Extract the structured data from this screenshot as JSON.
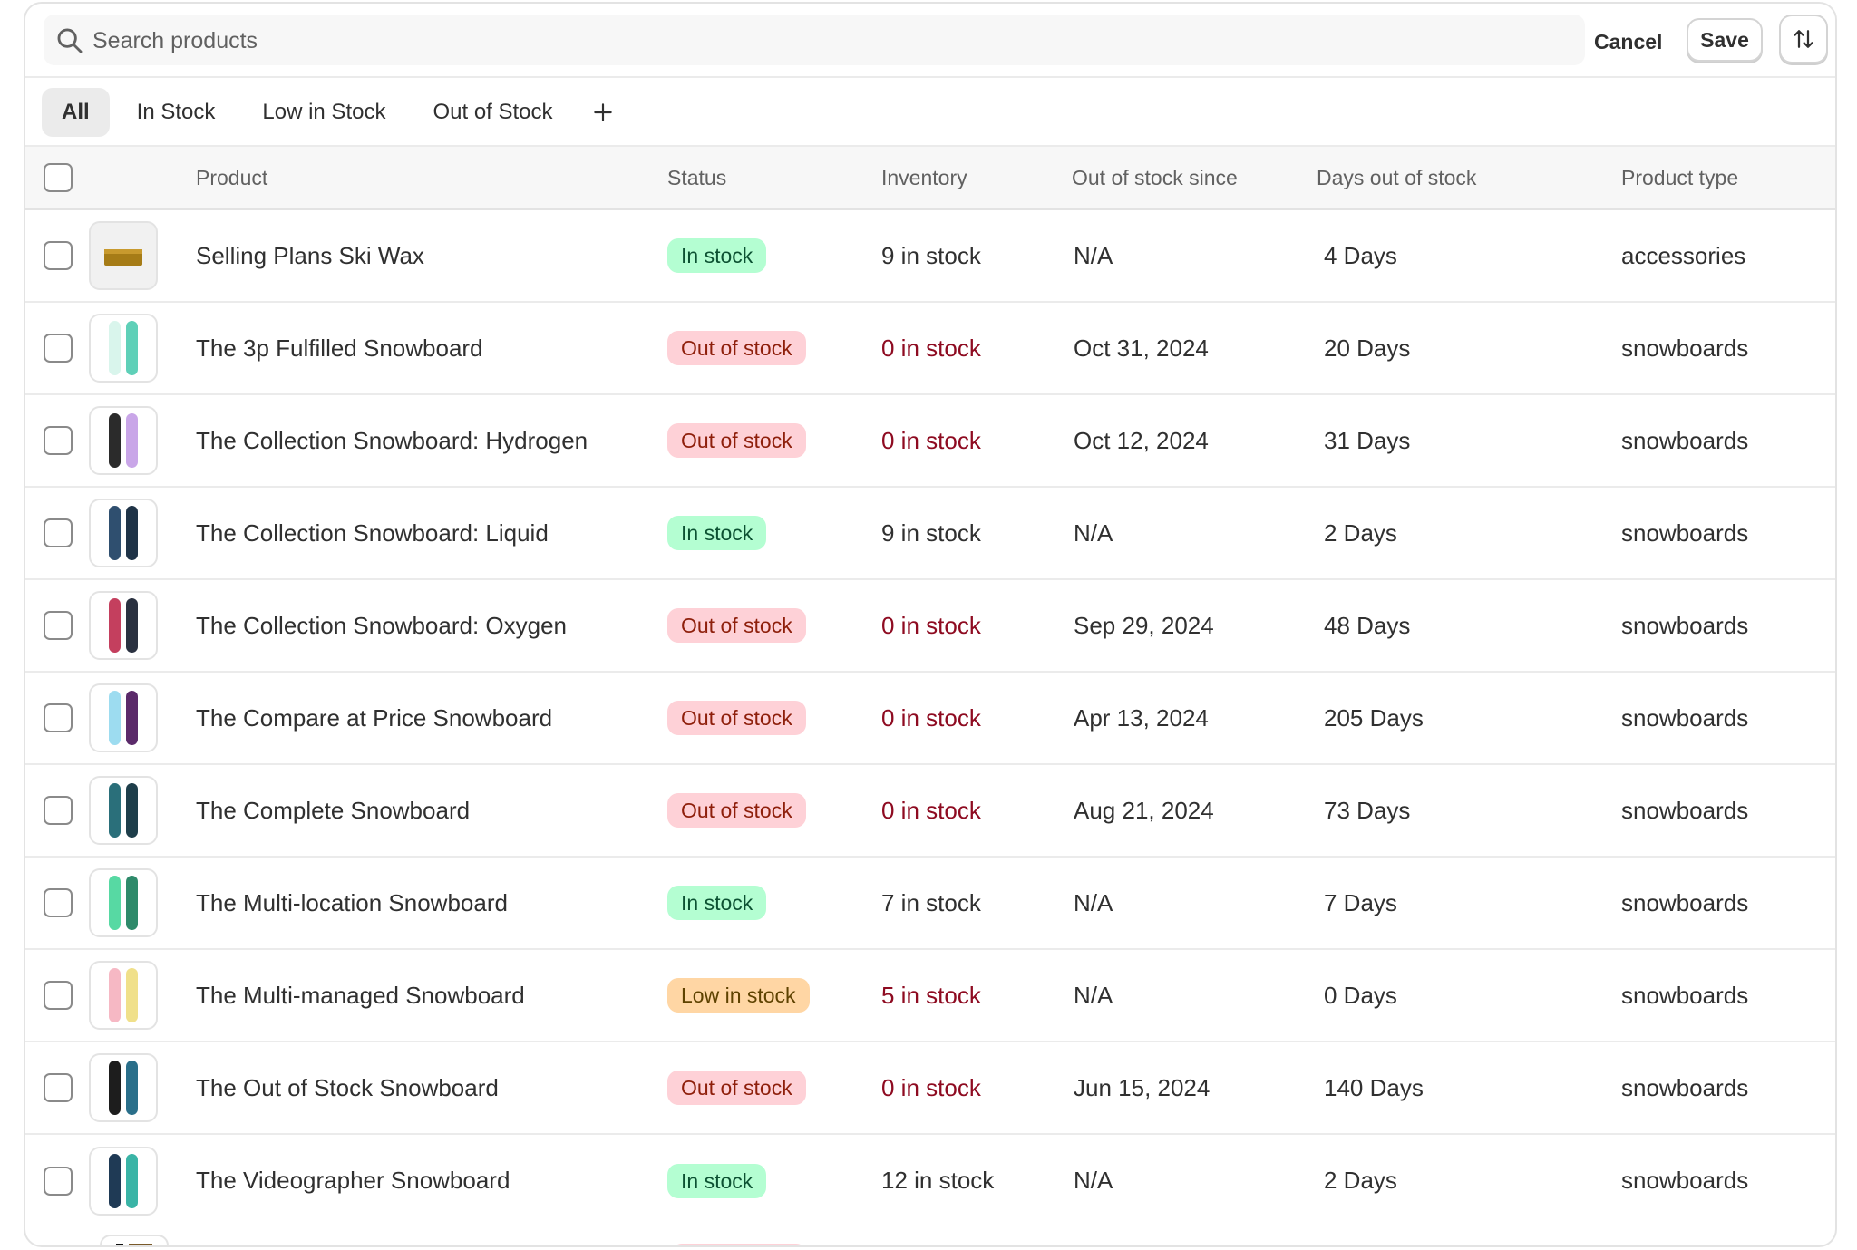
{
  "search": {
    "placeholder": "Search products"
  },
  "toolbar": {
    "cancel_label": "Cancel",
    "save_label": "Save"
  },
  "tabs": [
    {
      "label": "All",
      "active": true
    },
    {
      "label": "In Stock",
      "active": false
    },
    {
      "label": "Low in Stock",
      "active": false
    },
    {
      "label": "Out of Stock",
      "active": false
    }
  ],
  "columns": {
    "product": "Product",
    "status": "Status",
    "inventory": "Inventory",
    "out_since": "Out of stock since",
    "days_out": "Days out of stock",
    "type": "Product type"
  },
  "colors": {
    "in_stock_bg": "#b4fed2",
    "out_of_stock_bg": "#fed1d7",
    "low_stock_bg": "#ffd6a4",
    "critical_text": "#8e0b21"
  },
  "rows": [
    {
      "product": "Selling Plans Ski Wax",
      "status": "In stock",
      "status_kind": "in",
      "inventory": "9 in stock",
      "inventory_critical": false,
      "out_since": "N/A",
      "days_out": "4 Days",
      "type": "accessories",
      "thumb": "wax"
    },
    {
      "product": "The 3p Fulfilled Snowboard",
      "status": "Out of stock",
      "status_kind": "out",
      "inventory": "0 in stock",
      "inventory_critical": true,
      "out_since": "Oct 31, 2024",
      "days_out": "20 Days",
      "type": "snowboards",
      "thumb": "board"
    },
    {
      "product": "The Collection Snowboard: Hydrogen",
      "status": "Out of stock",
      "status_kind": "out",
      "inventory": "0 in stock",
      "inventory_critical": true,
      "out_since": "Oct 12, 2024",
      "days_out": "31 Days",
      "type": "snowboards",
      "thumb": "board"
    },
    {
      "product": "The Collection Snowboard: Liquid",
      "status": "In stock",
      "status_kind": "in",
      "inventory": "9 in stock",
      "inventory_critical": false,
      "out_since": "N/A",
      "days_out": "2 Days",
      "type": "snowboards",
      "thumb": "board"
    },
    {
      "product": "The Collection Snowboard: Oxygen",
      "status": "Out of stock",
      "status_kind": "out",
      "inventory": "0 in stock",
      "inventory_critical": true,
      "out_since": "Sep 29, 2024",
      "days_out": "48 Days",
      "type": "snowboards",
      "thumb": "board"
    },
    {
      "product": "The Compare at Price Snowboard",
      "status": "Out of stock",
      "status_kind": "out",
      "inventory": "0 in stock",
      "inventory_critical": true,
      "out_since": "Apr 13, 2024",
      "days_out": "205 Days",
      "type": "snowboards",
      "thumb": "board"
    },
    {
      "product": "The Complete Snowboard",
      "status": "Out of stock",
      "status_kind": "out",
      "inventory": "0 in stock",
      "inventory_critical": true,
      "out_since": "Aug 21, 2024",
      "days_out": "73 Days",
      "type": "snowboards",
      "thumb": "board"
    },
    {
      "product": "The Multi-location Snowboard",
      "status": "In stock",
      "status_kind": "in",
      "inventory": "7 in stock",
      "inventory_critical": false,
      "out_since": "N/A",
      "days_out": "7 Days",
      "type": "snowboards",
      "thumb": "board"
    },
    {
      "product": "The Multi-managed Snowboard",
      "status": "Low in stock",
      "status_kind": "low",
      "inventory": "5 in stock",
      "inventory_critical": true,
      "out_since": "N/A",
      "days_out": "0 Days",
      "type": "snowboards",
      "thumb": "board"
    },
    {
      "product": "The Out of Stock Snowboard",
      "status": "Out of stock",
      "status_kind": "out",
      "inventory": "0 in stock",
      "inventory_critical": true,
      "out_since": "Jun 15, 2024",
      "days_out": "140 Days",
      "type": "snowboards",
      "thumb": "board"
    },
    {
      "product": "The Videographer Snowboard",
      "status": "In stock",
      "status_kind": "in",
      "inventory": "12 in stock",
      "inventory_critical": false,
      "out_since": "N/A",
      "days_out": "2 Days",
      "type": "snowboards",
      "thumb": "board"
    }
  ]
}
